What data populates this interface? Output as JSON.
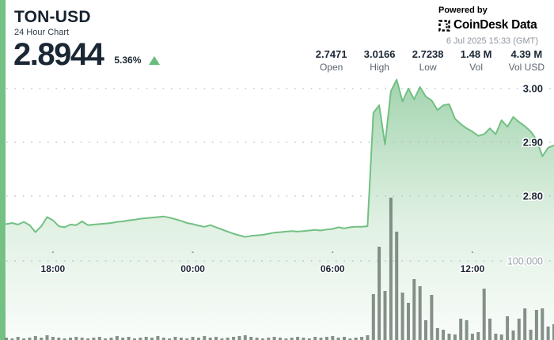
{
  "header": {
    "symbol": "TON-USD",
    "subtitle": "24 Hour Chart",
    "price": "2.8944",
    "change_pct": "5.36%",
    "direction": "up"
  },
  "attribution": {
    "powered_by": "Powered by",
    "brand": "CoinDesk Data",
    "timestamp": "6 Jul 2025 15:33 (GMT)"
  },
  "stats": [
    {
      "value": "2.7471",
      "label": "Open"
    },
    {
      "value": "3.0166",
      "label": "High"
    },
    {
      "value": "2.7238",
      "label": "Low"
    },
    {
      "value": "1.48 M",
      "label": "Vol"
    },
    {
      "value": "4.39 M",
      "label": "Vol USD"
    }
  ],
  "colors": {
    "accent_green": "#74c183",
    "line_green": "#72c083",
    "triangle_green": "#67bd7d",
    "navy_text": "#1b2734",
    "muted_text": "#5a646e",
    "faint_text": "#9aa2ab",
    "volume_bar": "#68756b",
    "area_gradient_top": "#9ed2ab",
    "area_gradient_bottom": "#f8fcf9"
  },
  "chart_data": {
    "type": "area",
    "title": "TON-USD 24 Hour Chart",
    "subtype": "price area line with volume bars",
    "grid": "dotted horizontal",
    "legend": "none",
    "start_time": "16:00 (5 Jul 2025, GMT)",
    "end_time": "15:30 (6 Jul 2025, GMT)",
    "interval_minutes": 15,
    "x_tick_labels": [
      "18:00",
      "00:00",
      "06:00",
      "12:00"
    ],
    "x_tick_hours_from_start": [
      2,
      8,
      14,
      20
    ],
    "x_total_hours": 23.5,
    "price_axis": {
      "ticks": [
        "3.00",
        "2.90",
        "2.80"
      ],
      "tick_values": [
        3.0,
        2.9,
        2.8
      ],
      "visible_range": [
        2.7,
        3.05
      ],
      "position": "right-inside"
    },
    "volume_axis": {
      "tick": "100,000",
      "tick_value": 100000,
      "range": [
        0,
        200000
      ]
    },
    "price": [
      2.748,
      2.75,
      2.747,
      2.752,
      2.746,
      2.733,
      2.744,
      2.761,
      2.755,
      2.744,
      2.742,
      2.747,
      2.746,
      2.753,
      2.746,
      2.747,
      2.748,
      2.749,
      2.75,
      2.752,
      2.753,
      2.755,
      2.756,
      2.758,
      2.759,
      2.76,
      2.761,
      2.762,
      2.76,
      2.757,
      2.754,
      2.75,
      2.748,
      2.745,
      2.743,
      2.746,
      2.742,
      2.738,
      2.734,
      2.73,
      2.727,
      2.724,
      2.726,
      2.727,
      2.728,
      2.73,
      2.732,
      2.733,
      2.734,
      2.735,
      2.734,
      2.735,
      2.736,
      2.737,
      2.736,
      2.738,
      2.739,
      2.742,
      2.74,
      2.742,
      2.743,
      2.743,
      2.744,
      2.955,
      2.969,
      2.896,
      2.995,
      3.0166,
      2.976,
      3.0,
      2.98,
      3.003,
      2.985,
      2.978,
      2.96,
      2.969,
      2.971,
      2.944,
      2.934,
      2.926,
      2.92,
      2.912,
      2.915,
      2.926,
      2.915,
      2.941,
      2.929,
      2.947,
      2.938,
      2.93,
      2.92,
      2.905,
      2.874,
      2.89,
      2.8944
    ],
    "volume_thousands": [
      3,
      2,
      4,
      2,
      3,
      5,
      3,
      6,
      4,
      3,
      2,
      3,
      4,
      3,
      2,
      3,
      4,
      2,
      3,
      5,
      3,
      4,
      2,
      3,
      4,
      3,
      5,
      3,
      2,
      4,
      3,
      2,
      4,
      3,
      5,
      3,
      4,
      2,
      3,
      4,
      5,
      6,
      4,
      3,
      2,
      3,
      4,
      3,
      2,
      3,
      4,
      3,
      2,
      4,
      3,
      4,
      5,
      3,
      4,
      2,
      3,
      4,
      6,
      58,
      118,
      62,
      180,
      137,
      60,
      47,
      77,
      68,
      25,
      57,
      15,
      13,
      8,
      7,
      27,
      25,
      8,
      10,
      65,
      27,
      8,
      7,
      30,
      12,
      27,
      40,
      13,
      38,
      40,
      17,
      20
    ]
  }
}
